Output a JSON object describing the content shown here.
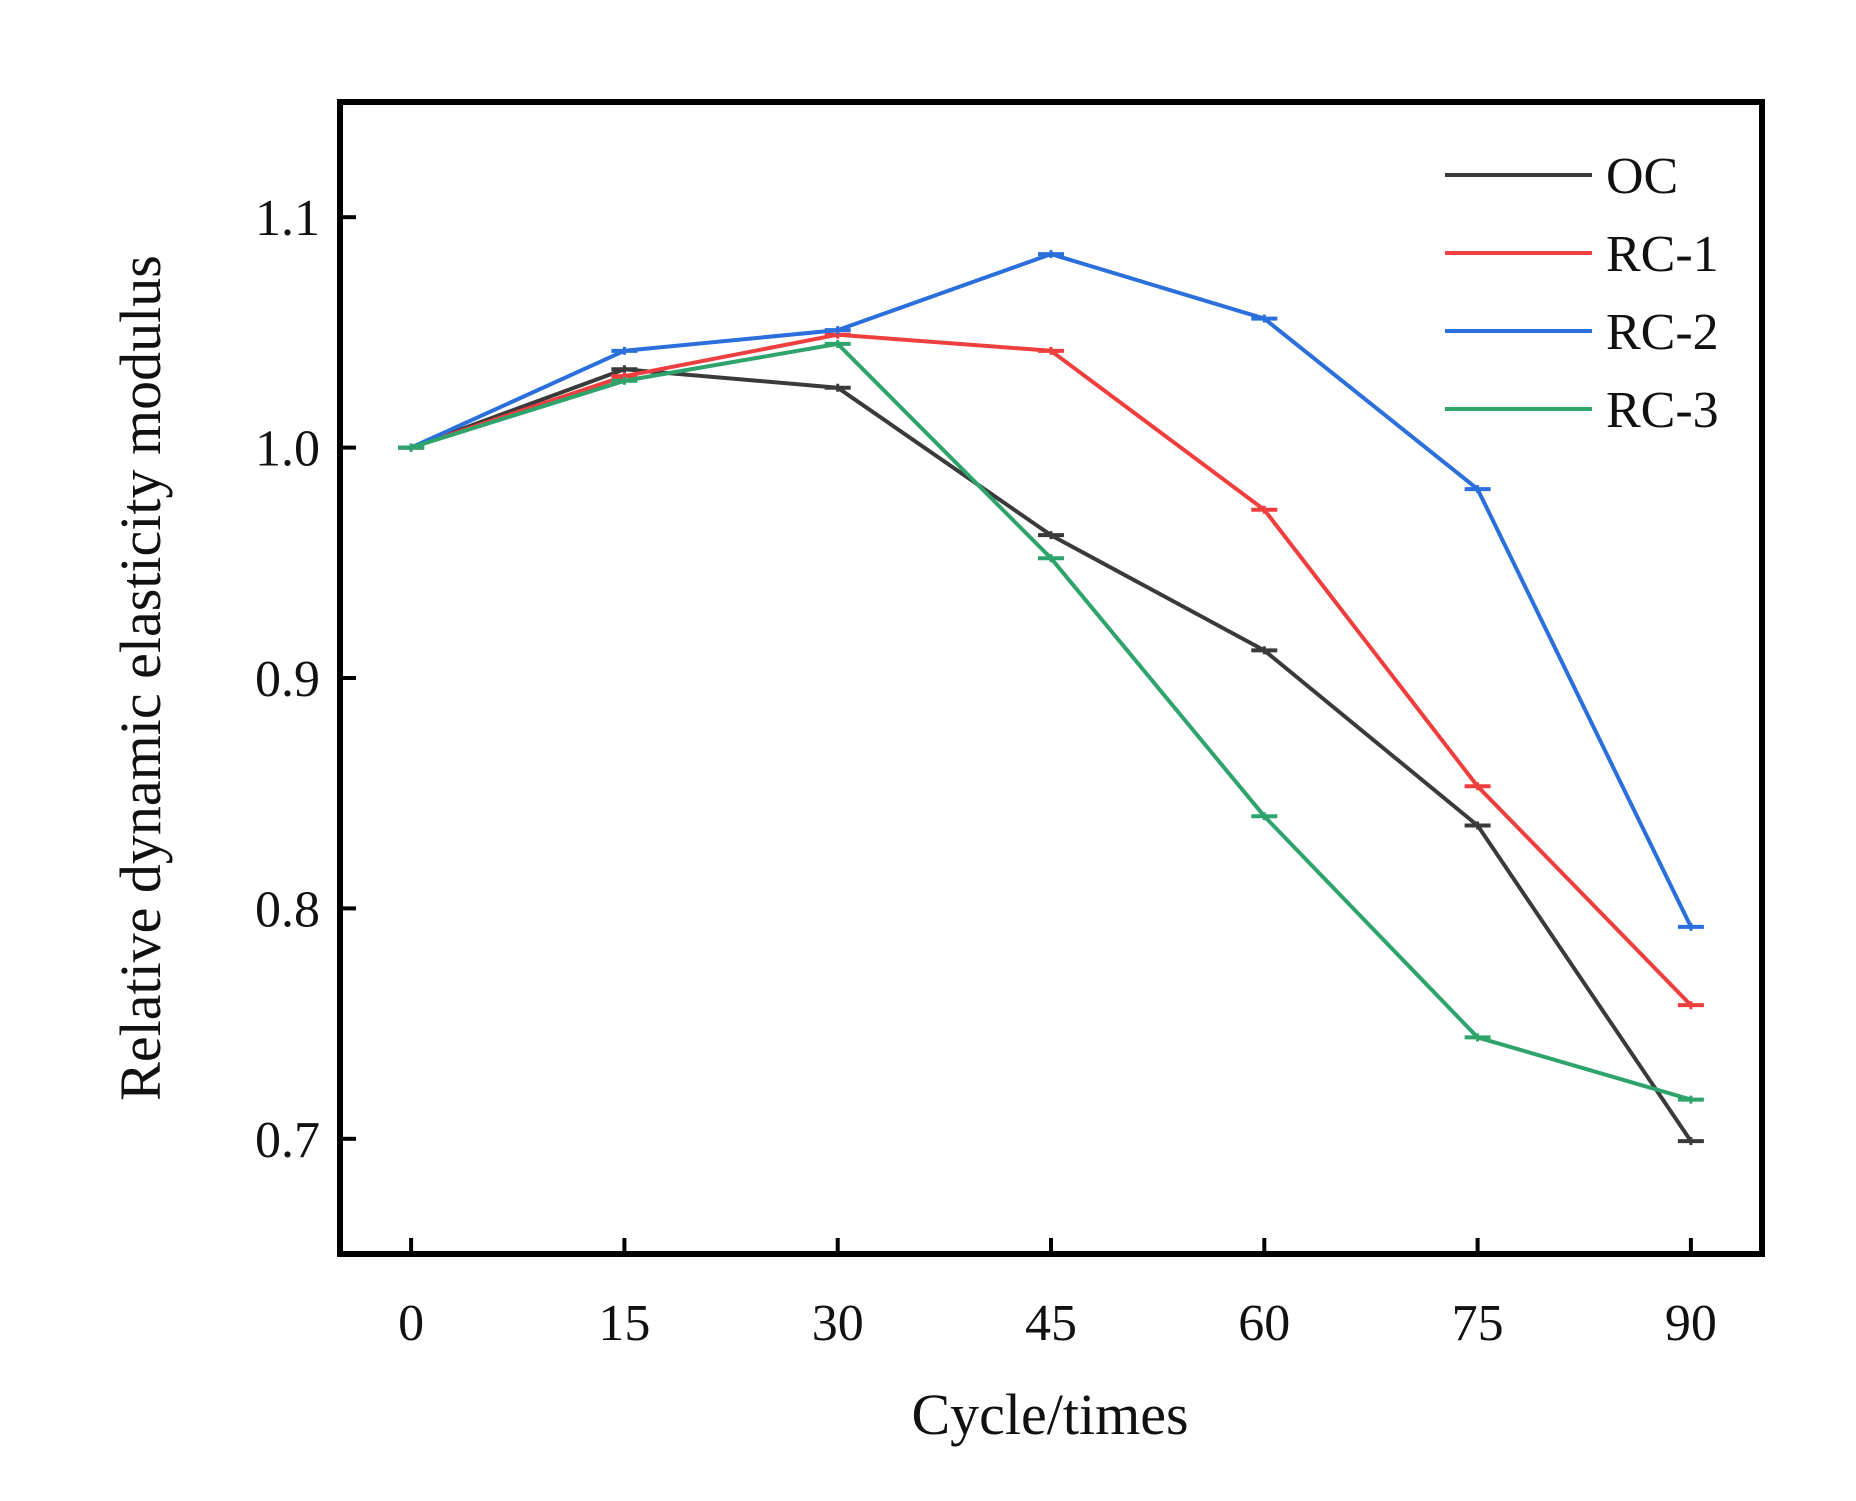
{
  "chart_data": {
    "type": "line",
    "title": "",
    "xlabel": "Cycle/times",
    "ylabel": "Relative dynamic elasticity modulus",
    "x": [
      0,
      15,
      30,
      45,
      60,
      75,
      90
    ],
    "xlim": [
      -5,
      95
    ],
    "ylim": [
      0.65,
      1.15
    ],
    "x_ticks": [
      "0",
      "15",
      "30",
      "45",
      "60",
      "75",
      "90"
    ],
    "y_ticks": [
      "0.7",
      "0.8",
      "0.9",
      "1.0",
      "1.1"
    ],
    "y_tick_values": [
      0.7,
      0.8,
      0.9,
      1.0,
      1.1
    ],
    "grid": false,
    "legend_position": "top-right",
    "series": [
      {
        "name": "OC",
        "color": "#3a3a3a",
        "values": [
          1.0,
          1.034,
          1.026,
          0.962,
          0.912,
          0.836,
          0.699
        ]
      },
      {
        "name": "RC-1",
        "color": "#ef3e3e",
        "values": [
          1.0,
          1.031,
          1.049,
          1.042,
          0.973,
          0.853,
          0.758
        ]
      },
      {
        "name": "RC-2",
        "color": "#2a6fdb",
        "values": [
          1.0,
          1.042,
          1.051,
          1.084,
          1.056,
          0.982,
          0.792
        ]
      },
      {
        "name": "RC-3",
        "color": "#2ea36b",
        "values": [
          1.0,
          1.029,
          1.045,
          0.952,
          0.84,
          0.744,
          0.717
        ]
      }
    ]
  }
}
